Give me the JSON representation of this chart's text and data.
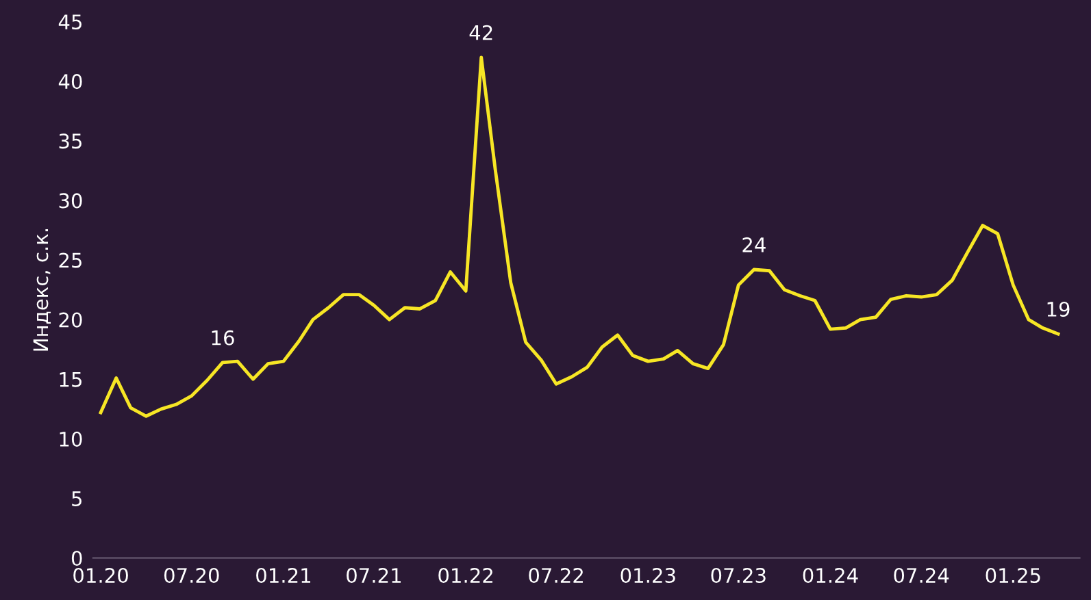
{
  "chart_data": {
    "type": "line",
    "ylabel": "Индекс, с.к.",
    "x": [
      "2020-01",
      "2020-02",
      "2020-03",
      "2020-04",
      "2020-05",
      "2020-06",
      "2020-07",
      "2020-08",
      "2020-09",
      "2020-10",
      "2020-11",
      "2020-12",
      "2021-01",
      "2021-02",
      "2021-03",
      "2021-04",
      "2021-05",
      "2021-06",
      "2021-07",
      "2021-08",
      "2021-09",
      "2021-10",
      "2021-11",
      "2021-12",
      "2022-01",
      "2022-02",
      "2022-03",
      "2022-04",
      "2022-05",
      "2022-06",
      "2022-07",
      "2022-08",
      "2022-09",
      "2022-10",
      "2022-11",
      "2022-12",
      "2023-01",
      "2023-02",
      "2023-03",
      "2023-04",
      "2023-05",
      "2023-06",
      "2023-07",
      "2023-08",
      "2023-09",
      "2023-10",
      "2023-11",
      "2023-12",
      "2024-01",
      "2024-02",
      "2024-03",
      "2024-04",
      "2024-05",
      "2024-06",
      "2024-07",
      "2024-08",
      "2024-09",
      "2024-10",
      "2024-11",
      "2024-12",
      "2025-01",
      "2025-02",
      "2025-03",
      "2025-04"
    ],
    "series": [
      {
        "color": "#f7e625",
        "values": [
          12.2,
          15.1,
          12.6,
          11.9,
          12.5,
          12.9,
          13.6,
          14.9,
          16.4,
          16.5,
          15.0,
          16.3,
          16.5,
          18.2,
          20.0,
          21.0,
          22.1,
          22.1,
          21.2,
          20.0,
          21.0,
          20.9,
          21.6,
          24.0,
          22.4,
          42.0,
          32.6,
          23.1,
          18.1,
          16.6,
          14.6,
          15.2,
          16.0,
          17.7,
          18.7,
          17.0,
          16.5,
          16.7,
          17.4,
          16.3,
          15.9,
          17.9,
          22.9,
          24.2,
          24.1,
          22.5,
          22.0,
          21.6,
          19.2,
          19.3,
          20.0,
          20.2,
          21.7,
          22.0,
          21.9,
          22.1,
          23.3,
          25.6,
          27.9,
          27.2,
          22.9,
          20.0,
          19.3,
          18.8
        ]
      }
    ],
    "xlim": [
      "2019-12-16",
      "2025-05-15"
    ],
    "xticks": [
      {
        "value": "2020-01",
        "label": "01.20"
      },
      {
        "value": "2020-07",
        "label": "07.20"
      },
      {
        "value": "2021-01",
        "label": "01.21"
      },
      {
        "value": "2021-07",
        "label": "07.21"
      },
      {
        "value": "2022-01",
        "label": "01.22"
      },
      {
        "value": "2022-07",
        "label": "07.22"
      },
      {
        "value": "2023-01",
        "label": "01.23"
      },
      {
        "value": "2023-07",
        "label": "07.23"
      },
      {
        "value": "2024-01",
        "label": "01.24"
      },
      {
        "value": "2024-07",
        "label": "07.24"
      },
      {
        "value": "2025-01",
        "label": "01.25"
      }
    ],
    "ylim": [
      0,
      45
    ],
    "yticks": [
      0,
      5,
      10,
      15,
      20,
      25,
      30,
      35,
      40,
      45
    ],
    "annotations": [
      {
        "text": "16",
        "x": "2020-09",
        "y": 16.4
      },
      {
        "text": "42",
        "x": "2022-02",
        "y": 42.0
      },
      {
        "text": "24",
        "x": "2023-08",
        "y": 24.2
      },
      {
        "text": "19",
        "x": "2025-04",
        "y": 18.8
      }
    ],
    "grid": false,
    "legend": false,
    "marker": "none",
    "line_style": "solid"
  }
}
